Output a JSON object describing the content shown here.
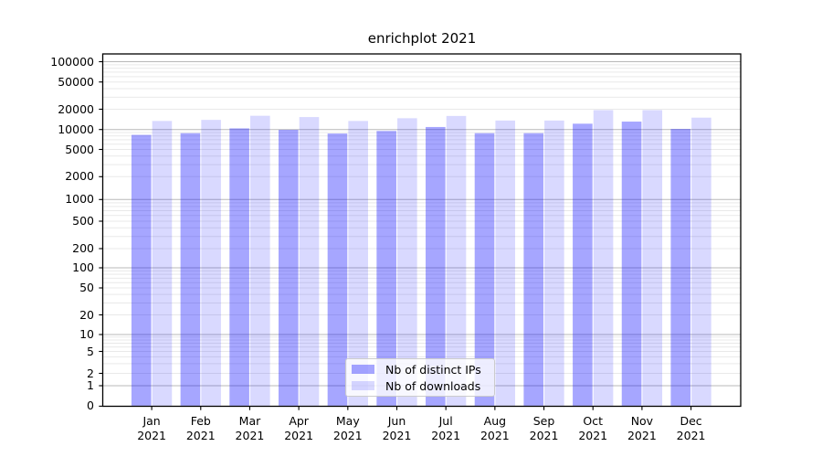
{
  "chart_data": {
    "type": "bar",
    "title": "enrichplot 2021",
    "categories": [
      "Jan",
      "Feb",
      "Mar",
      "Apr",
      "May",
      "Jun",
      "Jul",
      "Aug",
      "Sep",
      "Oct",
      "Nov",
      "Dec"
    ],
    "year_label": "2021",
    "series": [
      {
        "name": "Nb of distinct IPs",
        "color": "rgba(0,0,255,0.35)",
        "values": [
          8300,
          8800,
          10400,
          9900,
          8700,
          9500,
          10900,
          8800,
          8800,
          12200,
          13100,
          10200
        ]
      },
      {
        "name": "Nb of downloads",
        "color": "rgba(0,0,255,0.15)",
        "values": [
          13400,
          13900,
          16000,
          15300,
          13400,
          14700,
          15900,
          13600,
          13600,
          19400,
          19400,
          15000
        ]
      }
    ],
    "yscale": "symlog",
    "ytick_values": [
      0,
      1,
      2,
      5,
      10,
      20,
      50,
      100,
      200,
      500,
      1000,
      2000,
      5000,
      10000,
      20000,
      50000,
      100000
    ],
    "ytick_labels": [
      "0",
      "1",
      "2",
      "5",
      "10",
      "20",
      "50",
      "100",
      "200",
      "500",
      "1000",
      "2000",
      "5000",
      "10000",
      "20000",
      "50000",
      "100000"
    ],
    "ylim": [
      0,
      125000
    ],
    "xlabel": "",
    "ylabel": "",
    "grid": true,
    "legend_position": "lower center",
    "colors": {
      "major_grid": "#b9b9b9",
      "minor_grid": "#e9e9e9",
      "axis": "#000000",
      "ips_bar_on_white": "#a6a6ff",
      "downloads_bar_on_white": "#d9d9ff"
    }
  }
}
